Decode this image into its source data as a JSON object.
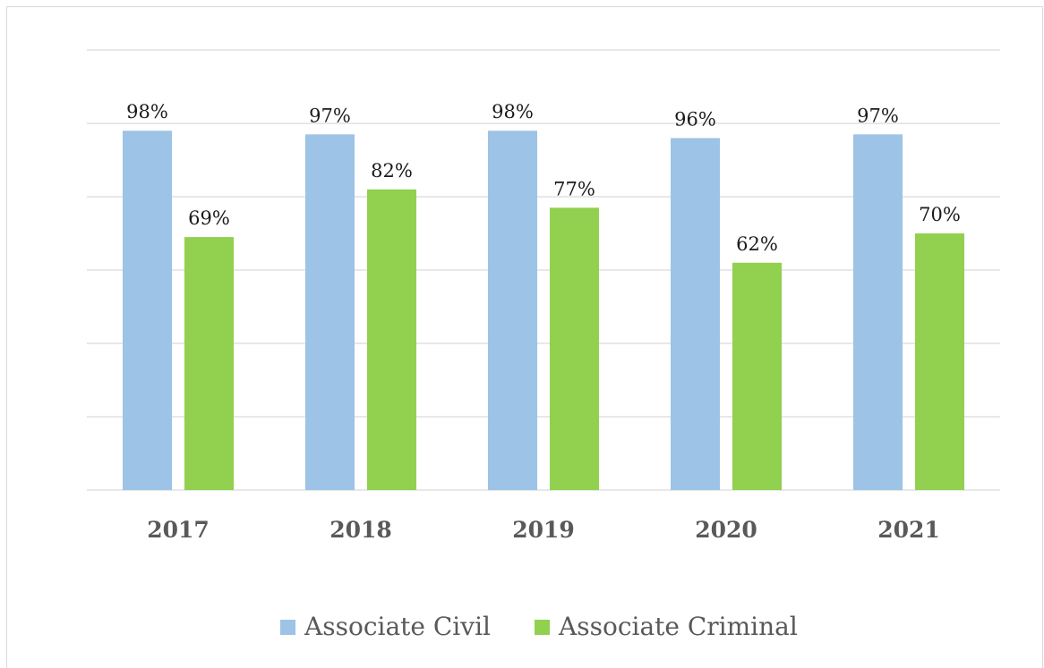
{
  "chart_data": {
    "type": "bar",
    "categories": [
      "2017",
      "2018",
      "2019",
      "2020",
      "2021"
    ],
    "series": [
      {
        "name": "Associate Civil",
        "values": [
          98,
          97,
          98,
          96,
          97
        ],
        "labels": [
          "98%",
          "97%",
          "98%",
          "96%",
          "97%"
        ],
        "color": "#9dc3e6"
      },
      {
        "name": "Associate Criminal",
        "values": [
          69,
          82,
          77,
          62,
          70
        ],
        "labels": [
          "69%",
          "82%",
          "77%",
          "62%",
          "70%"
        ],
        "color": "#92d050"
      }
    ],
    "title": "",
    "xlabel": "",
    "ylabel": "",
    "ylim": [
      0,
      120
    ],
    "grid": true,
    "legend": "bottom-center"
  }
}
